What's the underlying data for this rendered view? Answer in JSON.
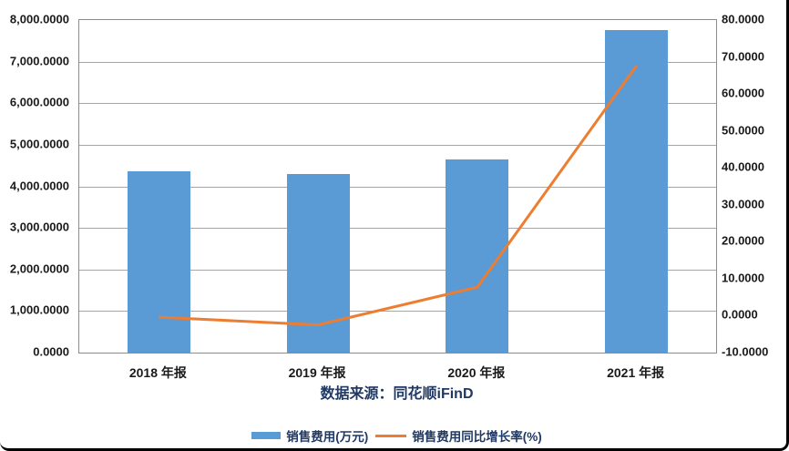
{
  "caption": {
    "text": "数据来源：同花顺iFinD"
  },
  "chart_data": {
    "type": "combo",
    "title": "",
    "categories": [
      "2018 年报",
      "2019 年报",
      "2020 年报",
      "2021 年报"
    ],
    "series": [
      {
        "name": "销售费用(万元)",
        "type": "bar",
        "yaxis": "left",
        "color": "#5B9BD5",
        "values": [
          4360,
          4295,
          4640,
          7760
        ]
      },
      {
        "name": "销售费用同比增长率(%)",
        "type": "line",
        "yaxis": "right",
        "color": "#ED7D31",
        "values": [
          -0.4,
          -2.5,
          7.7,
          67.6
        ]
      }
    ],
    "left_axis": {
      "min": 0,
      "max": 8000,
      "step": 1000,
      "tick_labels_top_to_bottom": [
        "8,000.0000",
        "7,000.0000",
        "6,000.0000",
        "5,000.0000",
        "4,000.0000",
        "3,000.0000",
        "2,000.0000",
        "1,000.0000",
        "0.0000"
      ]
    },
    "right_axis": {
      "min": -10,
      "max": 80,
      "step": 10,
      "tick_labels_top_to_bottom": [
        "80.0000",
        "70.0000",
        "60.0000",
        "50.0000",
        "40.0000",
        "30.0000",
        "20.0000",
        "10.0000",
        "0.0000",
        "-10.0000"
      ]
    },
    "grid": "horizontal",
    "legend_position": "bottom",
    "colors": {
      "gridline": "#A6A6A6",
      "plot_border": "#8C8C8C",
      "tick_text": "#1A1A1A",
      "caption_text": "#1F3864",
      "window_border": "#000000"
    }
  },
  "legend": {
    "items": [
      {
        "label": "销售费用(万元)",
        "swatch": "bar",
        "color": "#5B9BD5"
      },
      {
        "label": "销售费用同比增长率(%)",
        "swatch": "line",
        "color": "#ED7D31"
      }
    ]
  }
}
